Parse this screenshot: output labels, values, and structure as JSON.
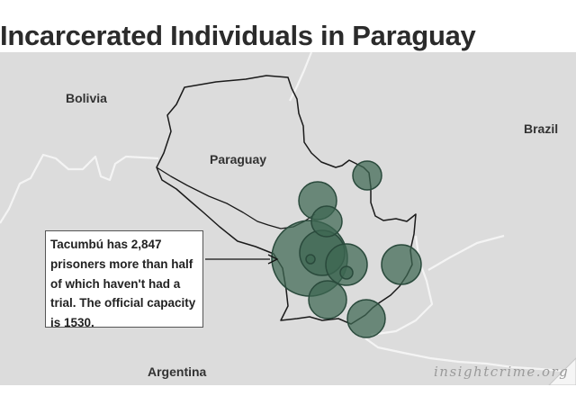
{
  "title": "Incarcerated Individuals in Paraguay",
  "labels": {
    "bolivia": "Bolivia",
    "brazil": "Brazil",
    "paraguay": "Paraguay",
    "argentina": "Argentina"
  },
  "callout": {
    "text": "Tacumbú has 2,847 prisoners more than half of which haven't had a trial. The official capacity is 1530."
  },
  "credit": "insightcrime.org",
  "colors": {
    "map_background": "#dcdcdc",
    "bubble_fill": "#3d6652",
    "bubble_stroke": "#2a4a3c",
    "border": "#1a1a1a",
    "faint_border": "#f2f2f2"
  }
}
